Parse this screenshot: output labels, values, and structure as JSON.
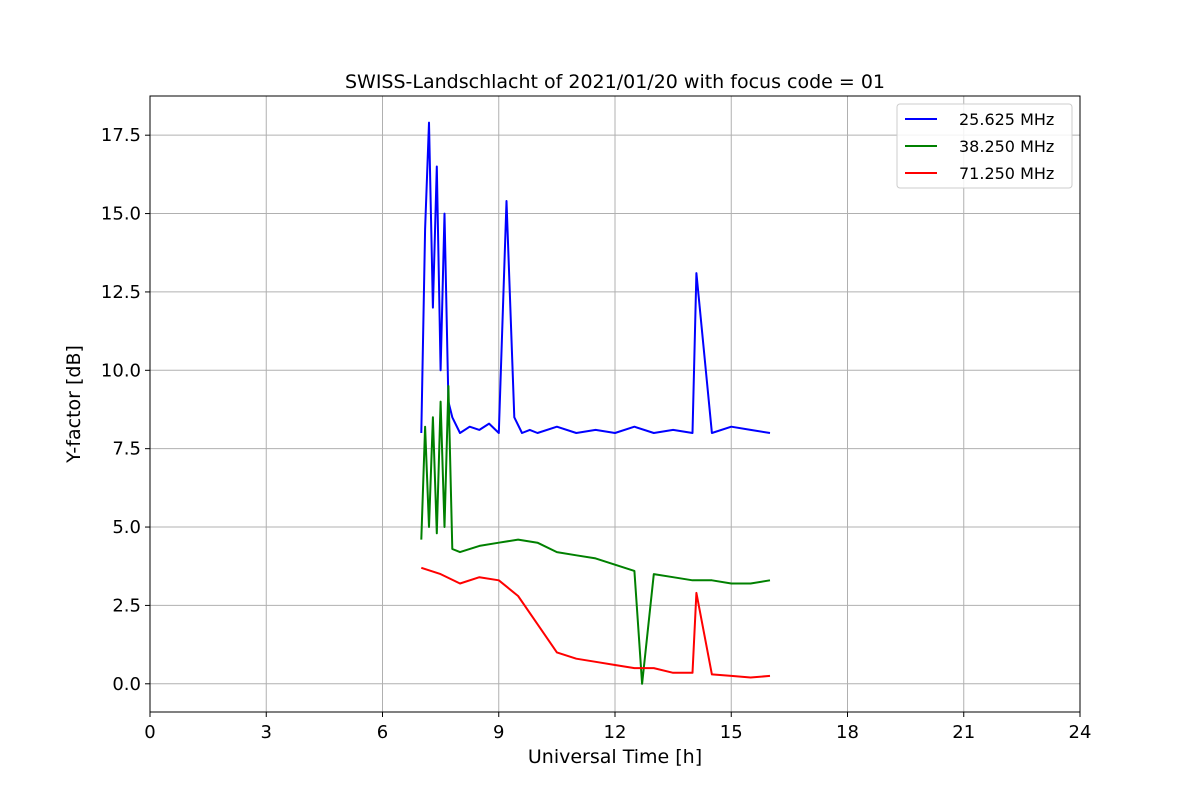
{
  "chart_data": {
    "type": "line",
    "title": "SWISS-Landschlacht of 2021/01/20 with focus code = 01",
    "xlabel": "Universal Time [h]",
    "ylabel": "Y-factor [dB]",
    "xlim": [
      0,
      24
    ],
    "ylim": [
      -0.9,
      18.75
    ],
    "xticks": [
      0,
      3,
      6,
      9,
      12,
      15,
      18,
      21,
      24
    ],
    "xtick_labels": [
      "0",
      "3",
      "6",
      "9",
      "12",
      "15",
      "18",
      "21",
      "24"
    ],
    "yticks": [
      0,
      2.5,
      5,
      7.5,
      10,
      12.5,
      15,
      17.5
    ],
    "ytick_labels": [
      "0.0",
      "2.5",
      "5.0",
      "7.5",
      "10.0",
      "12.5",
      "15.0",
      "17.5"
    ],
    "grid": true,
    "legend_position": "top-right",
    "series": [
      {
        "name": "25.625 MHz",
        "color": "#0000ff",
        "x": [
          7.0,
          7.1,
          7.2,
          7.3,
          7.4,
          7.5,
          7.6,
          7.7,
          7.8,
          8.0,
          8.25,
          8.5,
          8.75,
          9.0,
          9.2,
          9.4,
          9.6,
          9.8,
          10.0,
          10.5,
          11.0,
          11.5,
          12.0,
          12.5,
          13.0,
          13.5,
          14.0,
          14.1,
          14.5,
          15.0,
          15.5,
          16.0
        ],
        "y": [
          8.0,
          14.5,
          17.9,
          12.0,
          16.5,
          10.0,
          15.0,
          9.0,
          8.5,
          8.0,
          8.2,
          8.1,
          8.3,
          8.0,
          15.4,
          8.5,
          8.0,
          8.1,
          8.0,
          8.2,
          8.0,
          8.1,
          8.0,
          8.2,
          8.0,
          8.1,
          8.0,
          13.1,
          8.0,
          8.2,
          8.1,
          8.0
        ]
      },
      {
        "name": "38.250 MHz",
        "color": "#008000",
        "x": [
          7.0,
          7.1,
          7.2,
          7.3,
          7.4,
          7.5,
          7.6,
          7.7,
          7.8,
          8.0,
          8.5,
          9.0,
          9.5,
          10.0,
          10.5,
          11.0,
          11.5,
          12.0,
          12.5,
          12.7,
          13.0,
          13.5,
          14.0,
          14.5,
          15.0,
          15.5,
          16.0
        ],
        "y": [
          4.6,
          8.2,
          5.0,
          8.5,
          4.8,
          9.0,
          5.0,
          9.5,
          4.3,
          4.2,
          4.4,
          4.5,
          4.6,
          4.5,
          4.2,
          4.1,
          4.0,
          3.8,
          3.6,
          0.0,
          3.5,
          3.4,
          3.3,
          3.3,
          3.2,
          3.2,
          3.3
        ]
      },
      {
        "name": "71.250 MHz",
        "color": "#ff0000",
        "x": [
          7.0,
          7.5,
          8.0,
          8.5,
          9.0,
          9.5,
          10.0,
          10.5,
          11.0,
          11.5,
          12.0,
          12.5,
          13.0,
          13.5,
          14.0,
          14.1,
          14.5,
          15.0,
          15.5,
          16.0
        ],
        "y": [
          3.7,
          3.5,
          3.2,
          3.4,
          3.3,
          2.8,
          1.9,
          1.0,
          0.8,
          0.7,
          0.6,
          0.5,
          0.5,
          0.35,
          0.35,
          2.9,
          0.3,
          0.25,
          0.2,
          0.25
        ]
      }
    ]
  }
}
